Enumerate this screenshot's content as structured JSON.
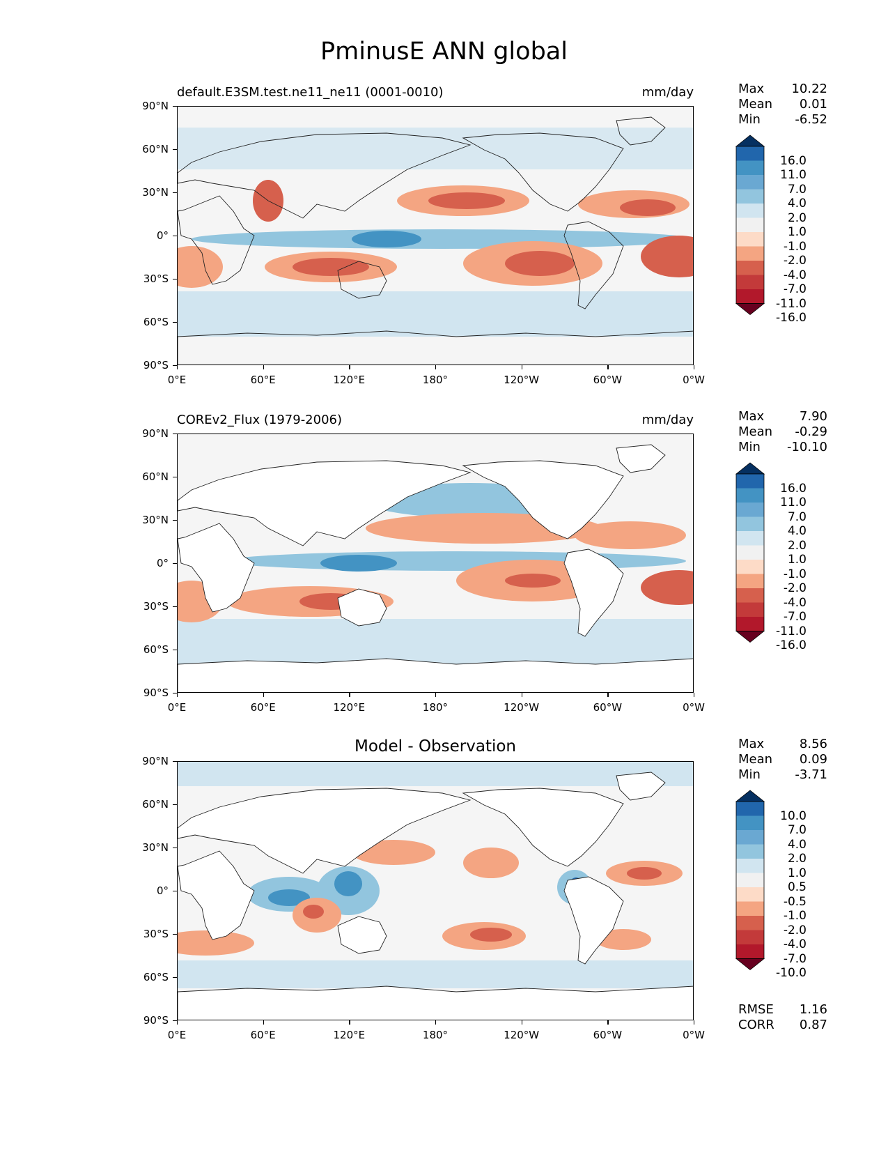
{
  "title": "PminusE ANN global",
  "axes": {
    "lat_labels": [
      "90°N",
      "60°N",
      "30°N",
      "0°",
      "30°S",
      "60°S",
      "90°S"
    ],
    "lon_labels": [
      "0°E",
      "60°E",
      "120°E",
      "180°",
      "120°W",
      "60°W",
      "0°W"
    ]
  },
  "panels": [
    {
      "name": "model",
      "title_left": "default.E3SM.test.ne11_ne11 (0001-0010)",
      "title_right": "mm/day",
      "title_center": "",
      "stats": [
        {
          "label": "Max",
          "value": "10.22"
        },
        {
          "label": "Mean",
          "value": "0.01"
        },
        {
          "label": "Min",
          "value": "-6.52"
        }
      ],
      "colorbar_labels": [
        "16.0",
        "11.0",
        "7.0",
        "4.0",
        "2.0",
        "1.0",
        "-1.0",
        "-2.0",
        "-4.0",
        "-7.0",
        "-11.0",
        "-16.0"
      ]
    },
    {
      "name": "obs",
      "title_left": "COREv2_Flux (1979-2006)",
      "title_right": "mm/day",
      "title_center": "",
      "stats": [
        {
          "label": "Max",
          "value": "7.90"
        },
        {
          "label": "Mean",
          "value": "-0.29"
        },
        {
          "label": "Min",
          "value": "-10.10"
        }
      ],
      "colorbar_labels": [
        "16.0",
        "11.0",
        "7.0",
        "4.0",
        "2.0",
        "1.0",
        "-1.0",
        "-2.0",
        "-4.0",
        "-7.0",
        "-11.0",
        "-16.0"
      ]
    },
    {
      "name": "diff",
      "title_left": "",
      "title_right": "",
      "title_center": "Model - Observation",
      "stats": [
        {
          "label": "Max",
          "value": "8.56"
        },
        {
          "label": "Mean",
          "value": "0.09"
        },
        {
          "label": "Min",
          "value": "-3.71"
        }
      ],
      "colorbar_labels": [
        "10.0",
        "7.0",
        "4.0",
        "2.0",
        "1.0",
        "0.5",
        "-0.5",
        "-1.0",
        "-2.0",
        "-4.0",
        "-7.0",
        "-10.0"
      ],
      "metrics": [
        {
          "label": "RMSE",
          "value": "1.16"
        },
        {
          "label": "CORR",
          "value": "0.87"
        }
      ]
    }
  ],
  "colors": {
    "colormap": [
      "#053061",
      "#2166ac",
      "#4393c3",
      "#6aa8d2",
      "#92c5de",
      "#d1e5f0",
      "#f1f1f1",
      "#fddbc7",
      "#f4a582",
      "#d6604d",
      "#c33a3a",
      "#b2182b",
      "#67001f"
    ]
  }
}
